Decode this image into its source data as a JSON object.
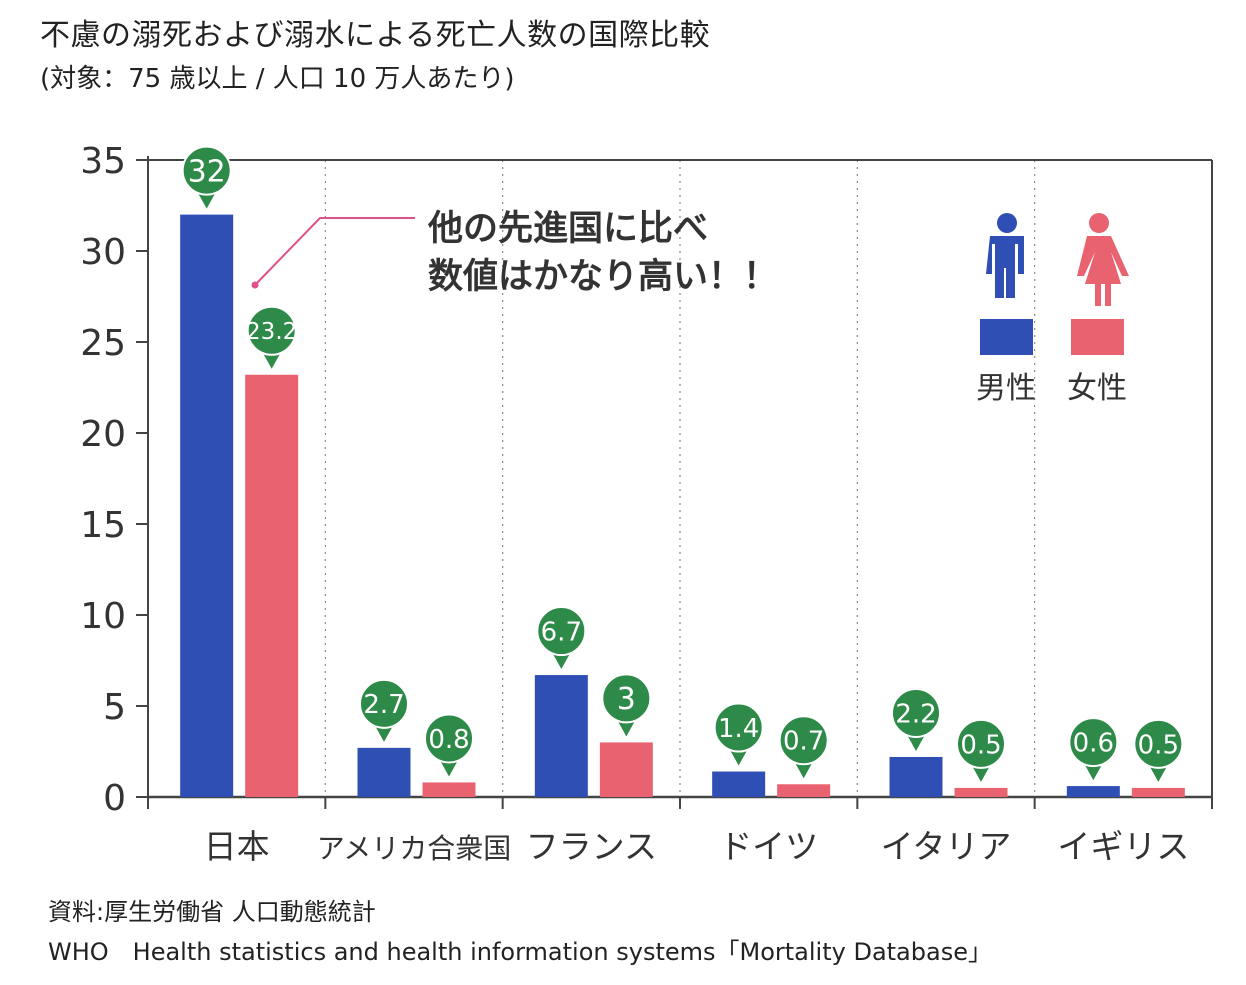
{
  "header": {
    "title": "不慮の溺死および溺水による死亡人数の国際比較",
    "subtitle": "(対象：75 歳以上 / 人口 10 万人あたり)"
  },
  "annotation": {
    "line1": "他の先進国に比べ",
    "line2": "数値はかなり高い！！"
  },
  "legend": {
    "male": "男性",
    "female": "女性"
  },
  "colors": {
    "male": "#2f4fb5",
    "female": "#e8636f",
    "label_bubble": "#2e8a48",
    "callout": "#e0508a"
  },
  "source": {
    "line1": "資料:厚生労働省 人口動態統計",
    "line2": "WHO　Health statistics and health information systems「Mortality Database」"
  },
  "chart_data": {
    "type": "bar",
    "title": "不慮の溺死および溺水による死亡人数の国際比較",
    "subtitle": "(対象：75 歳以上 / 人口 10 万人あたり)",
    "categories": [
      "日本",
      "アメリカ合衆国",
      "フランス",
      "ドイツ",
      "イタリア",
      "イギリス"
    ],
    "series": [
      {
        "name": "男性",
        "values": [
          32,
          2.7,
          6.7,
          1.4,
          2.2,
          0.6
        ]
      },
      {
        "name": "女性",
        "values": [
          23.2,
          0.8,
          3,
          0.7,
          0.5,
          0.5
        ]
      }
    ],
    "value_labels": [
      [
        "32",
        "2.7",
        "6.7",
        "1.4",
        "2.2",
        "0.6"
      ],
      [
        "23.2",
        "0.8",
        "3",
        "0.7",
        "0.5",
        "0.5"
      ]
    ],
    "yticks": [
      "0",
      "5",
      "10",
      "15",
      "20",
      "25",
      "30",
      "35"
    ],
    "ylim": [
      0,
      35
    ],
    "grid": "vertical dotted separators between categories",
    "legend_position": "top-right"
  }
}
